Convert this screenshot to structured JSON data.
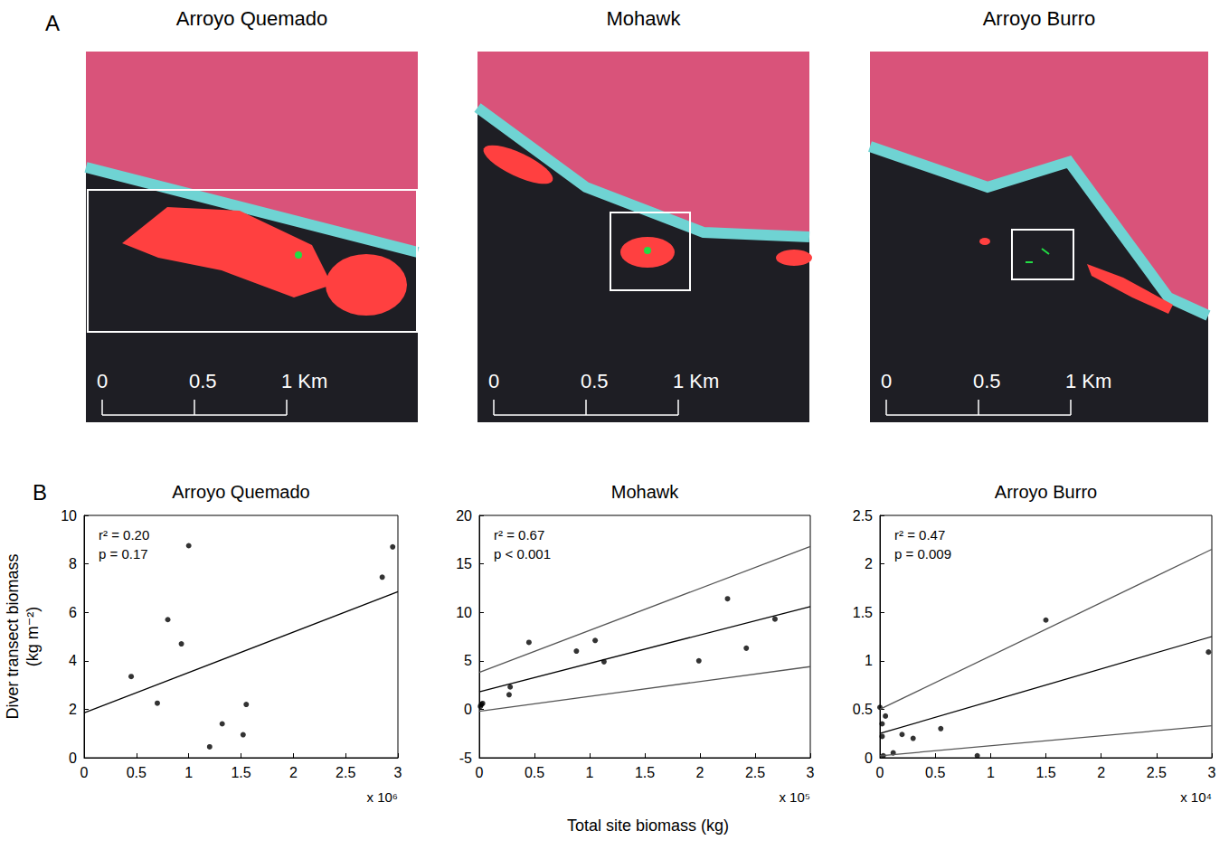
{
  "figure": {
    "labels": [
      "A",
      "B"
    ],
    "x_label": "Total site biomass (kg)",
    "y_label": "Diver transect biomass (kg m⁻²)"
  },
  "maps": [
    {
      "title": "Arroyo Quemado",
      "scale_labels": [
        "0",
        "0.5",
        "1 Km"
      ]
    },
    {
      "title": "Mohawk",
      "scale_labels": [
        "0",
        "0.5",
        "1 Km"
      ]
    },
    {
      "title": "Arroyo Burro",
      "scale_labels": [
        "0",
        "0.5",
        "1 Km"
      ]
    }
  ],
  "chart_data": [
    {
      "type": "scatter",
      "title": "Arroyo Quemado",
      "x_scale_label": "x 10⁶",
      "annotations": [
        "r² = 0.20",
        "p = 0.17"
      ],
      "grid": false,
      "xlim": [
        0,
        3
      ],
      "xticks": [
        0,
        0.5,
        1,
        1.5,
        2,
        2.5,
        3
      ],
      "ylim": [
        0,
        10
      ],
      "yticks": [
        0,
        2,
        4,
        6,
        8,
        10
      ],
      "series": [
        {
          "type": "scatter",
          "color": "#000000",
          "marker": "circle",
          "x": [
            0.45,
            0.7,
            0.8,
            0.93,
            1.0,
            1.2,
            1.32,
            1.52,
            1.55,
            2.85,
            2.95
          ],
          "values": [
            3.35,
            2.25,
            5.7,
            4.7,
            8.75,
            0.45,
            1.4,
            0.95,
            2.2,
            7.45,
            8.7
          ]
        },
        {
          "type": "line",
          "color": "#000000",
          "line_style": "solid",
          "x": [
            0,
            3
          ],
          "values": [
            1.85,
            6.85
          ]
        }
      ]
    },
    {
      "type": "scatter",
      "title": "Mohawk",
      "x_scale_label": "x 10⁵",
      "annotations": [
        "r² = 0.67",
        "p < 0.001"
      ],
      "grid": false,
      "xlim": [
        0,
        3
      ],
      "xticks": [
        0,
        0.5,
        1,
        1.5,
        2,
        2.5,
        3
      ],
      "ylim": [
        -5,
        20
      ],
      "yticks": [
        -5,
        0,
        5,
        10,
        15,
        20
      ],
      "series": [
        {
          "type": "scatter",
          "color": "#000000",
          "marker": "circle",
          "x": [
            0.01,
            0.02,
            0.03,
            0.27,
            0.28,
            0.45,
            0.88,
            1.05,
            1.13,
            1.99,
            2.25,
            2.42,
            2.68
          ],
          "values": [
            0.3,
            0.5,
            0.6,
            1.5,
            2.3,
            6.9,
            6.0,
            7.1,
            4.9,
            5.0,
            11.4,
            6.3,
            9.3
          ]
        },
        {
          "type": "line",
          "color": "#000000",
          "line_style": "solid",
          "x": [
            0,
            3
          ],
          "values": [
            1.8,
            10.6
          ]
        },
        {
          "type": "line",
          "color": "#555555",
          "line_style": "solid",
          "x": [
            0,
            3
          ],
          "values": [
            3.8,
            16.8
          ]
        },
        {
          "type": "line",
          "color": "#555555",
          "line_style": "solid",
          "x": [
            0,
            3
          ],
          "values": [
            -0.2,
            4.4
          ]
        }
      ]
    },
    {
      "type": "scatter",
      "title": "Arroyo Burro",
      "x_scale_label": "x 10⁴",
      "annotations": [
        "r² = 0.47",
        "p = 0.009"
      ],
      "grid": false,
      "xlim": [
        0,
        3
      ],
      "xticks": [
        0,
        0.5,
        1,
        1.5,
        2,
        2.5,
        3
      ],
      "ylim": [
        0,
        2.5
      ],
      "yticks": [
        0,
        0.5,
        1,
        1.5,
        2,
        2.5
      ],
      "series": [
        {
          "type": "scatter",
          "color": "#000000",
          "marker": "circle",
          "x": [
            0.0,
            0.02,
            0.02,
            0.03,
            0.05,
            0.12,
            0.2,
            0.3,
            0.55,
            0.88,
            1.5,
            2.97
          ],
          "values": [
            0.52,
            0.35,
            0.22,
            0.02,
            0.43,
            0.05,
            0.24,
            0.2,
            0.3,
            0.02,
            1.42,
            1.09
          ]
        },
        {
          "type": "line",
          "color": "#000000",
          "line_style": "solid",
          "x": [
            0,
            3
          ],
          "values": [
            0.25,
            1.25
          ]
        },
        {
          "type": "line",
          "color": "#555555",
          "line_style": "solid",
          "x": [
            0,
            3
          ],
          "values": [
            0.5,
            2.15
          ]
        },
        {
          "type": "line",
          "color": "#555555",
          "line_style": "solid",
          "x": [
            0,
            3
          ],
          "values": [
            0.02,
            0.33
          ]
        }
      ]
    }
  ]
}
